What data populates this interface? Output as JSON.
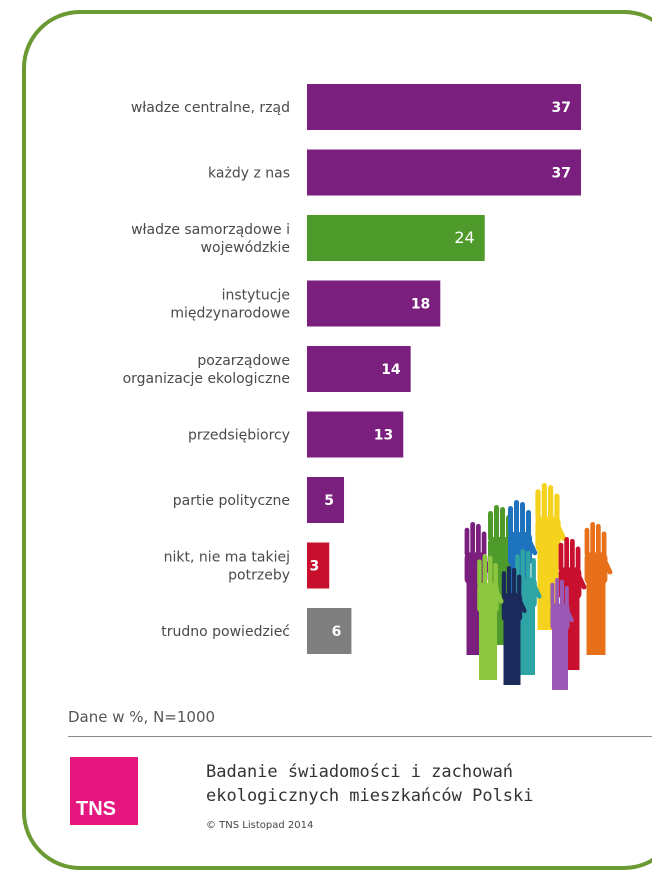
{
  "chart_data": {
    "type": "bar",
    "orientation": "horizontal",
    "categories": [
      [
        "władze centralne, rząd"
      ],
      [
        "każdy z nas"
      ],
      [
        "władze samorządowe i",
        "wojewódzkie"
      ],
      [
        "instytucje",
        "międzynarodowe"
      ],
      [
        "pozarządowe",
        "organizacje ekologiczne"
      ],
      [
        "przedsiębiorcy"
      ],
      [
        "partie polityczne"
      ],
      [
        "nikt, nie ma takiej",
        "potrzeby"
      ],
      [
        "trudno powiedzieć"
      ]
    ],
    "values": [
      37,
      37,
      24,
      18,
      14,
      13,
      5,
      3,
      6
    ],
    "colors": [
      "#7b1f7e",
      "#7b1f7e",
      "#4e9a2a",
      "#7b1f7e",
      "#7b1f7e",
      "#7b1f7e",
      "#7b1f7e",
      "#c8102e",
      "#7f7f7f"
    ],
    "xlim": [
      0,
      37
    ],
    "grid": false,
    "legend": "none"
  },
  "footer": {
    "note": "Dane w %, N=1000",
    "logo_text": "TNS",
    "logo_color": "#e5177e",
    "study_title_line1": "Badanie świadomości i zachowań",
    "study_title_line2": "ekologicznych mieszkańców Polski",
    "copyright": "© TNS Listopad 2014"
  },
  "decoration": {
    "image": "raised-hands-illustration",
    "hand_colors": [
      "#7b1f7e",
      "#4e9a2a",
      "#1e73be",
      "#f5d21e",
      "#2fa4a4",
      "#c8102e",
      "#e8701a",
      "#1a2a5a",
      "#8cc63f",
      "#9b59b6"
    ]
  }
}
